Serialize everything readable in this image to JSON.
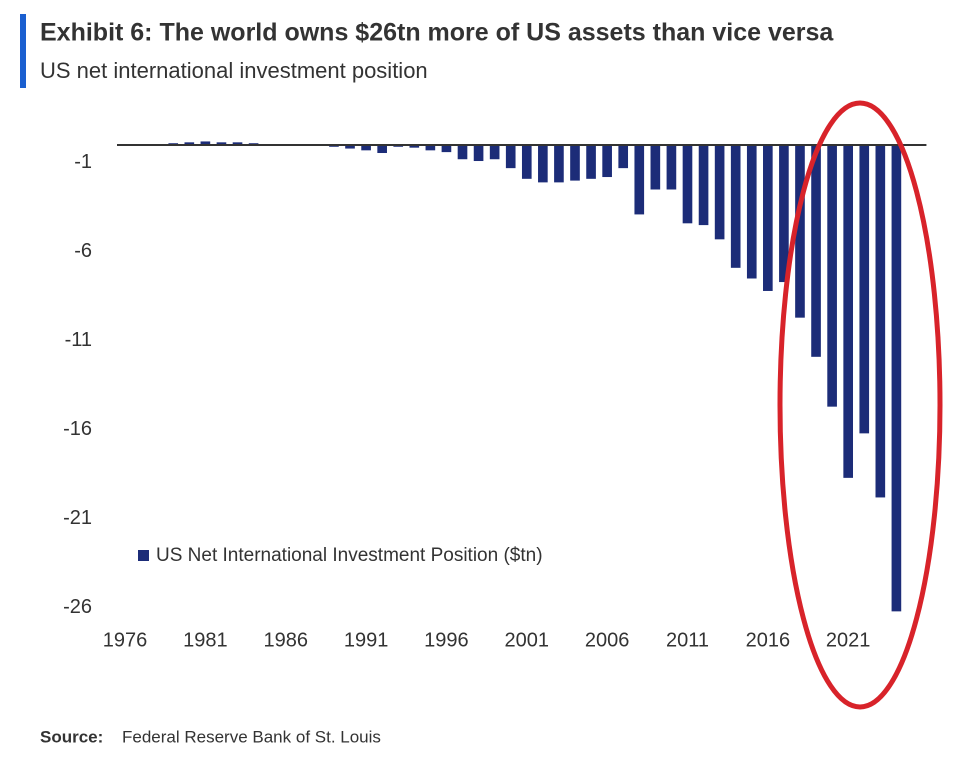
{
  "chart_data": {
    "type": "bar",
    "title": "Exhibit 6: The world owns $26tn more of US assets than vice versa",
    "subtitle": "US net international investment position",
    "source_label": "Source:",
    "source": "Federal Reserve Bank of St. Louis",
    "categories": [
      "1976",
      null,
      null,
      null,
      null,
      "1981",
      null,
      null,
      null,
      null,
      "1986",
      null,
      null,
      null,
      null,
      "1991",
      null,
      null,
      null,
      null,
      "1996",
      null,
      null,
      null,
      null,
      "2001",
      null,
      null,
      null,
      null,
      "2006",
      null,
      null,
      null,
      null,
      "2011",
      null,
      null,
      null,
      null,
      "2016",
      null,
      null,
      null,
      null,
      "2021",
      null,
      null,
      null
    ],
    "series": [
      {
        "name": "US Net International Investment Position ($tn)",
        "color": "#1c2c78",
        "values": [
          0.05,
          0.05,
          0.05,
          0.1,
          0.15,
          0.2,
          0.15,
          0.15,
          0.1,
          0.05,
          0.0,
          -0.05,
          -0.05,
          -0.1,
          -0.2,
          -0.3,
          -0.45,
          -0.1,
          -0.15,
          -0.3,
          -0.4,
          -0.8,
          -0.9,
          -0.8,
          -1.3,
          -1.9,
          -2.1,
          -2.1,
          -2.0,
          -1.9,
          -1.8,
          -1.3,
          -3.9,
          -2.5,
          -2.5,
          -4.4,
          -4.5,
          -5.3,
          -6.9,
          -7.5,
          -8.2,
          -7.7,
          -9.7,
          -11.9,
          -14.7,
          -18.7,
          -16.2,
          -19.8,
          -26.2
        ]
      }
    ],
    "ylim": [
      -26.5,
      0.3
    ],
    "yticks": [
      -1,
      -6,
      -11,
      -16,
      -21,
      -26
    ],
    "grid": false,
    "legend": "lower-left"
  }
}
